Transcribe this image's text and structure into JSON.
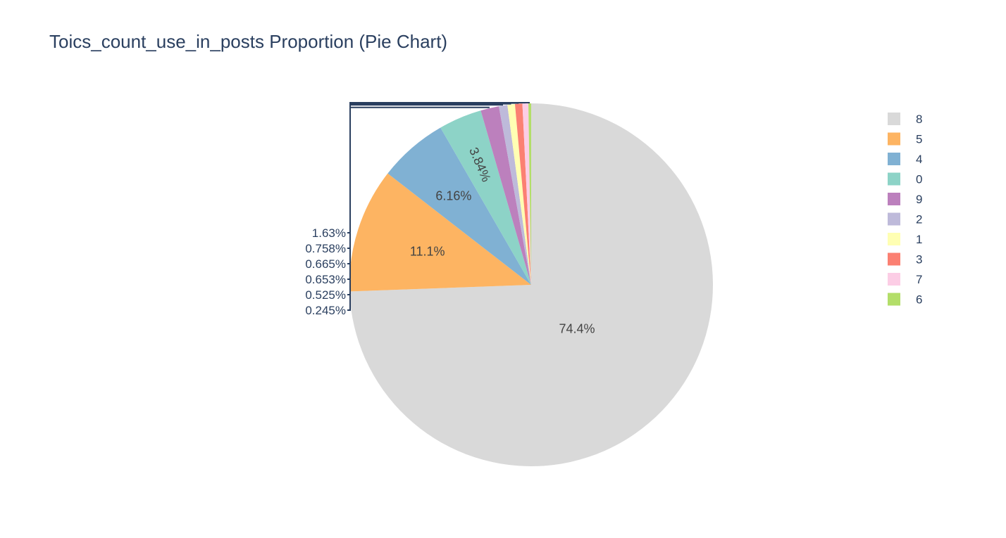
{
  "chart_data": {
    "type": "pie",
    "title": "Toics_count_use_in_posts Proportion (Pie Chart)",
    "labels": [
      "8",
      "5",
      "4",
      "0",
      "9",
      "2",
      "1",
      "3",
      "7",
      "6"
    ],
    "values": [
      74.4,
      11.1,
      6.16,
      3.84,
      1.63,
      0.758,
      0.665,
      0.653,
      0.525,
      0.245
    ],
    "value_labels": [
      "74.4%",
      "11.1%",
      "6.16%",
      "3.84%",
      "1.63%",
      "0.758%",
      "0.665%",
      "0.653%",
      "0.525%",
      "0.245%"
    ],
    "colors": [
      "#d9d9d9",
      "#fdb462",
      "#80b1d3",
      "#8dd3c7",
      "#bc80bd",
      "#bebada",
      "#ffffb3",
      "#fb8072",
      "#fccde5",
      "#b3de69"
    ],
    "direction": "clockwise",
    "start_angle": "top",
    "legend_position": "top-right"
  }
}
